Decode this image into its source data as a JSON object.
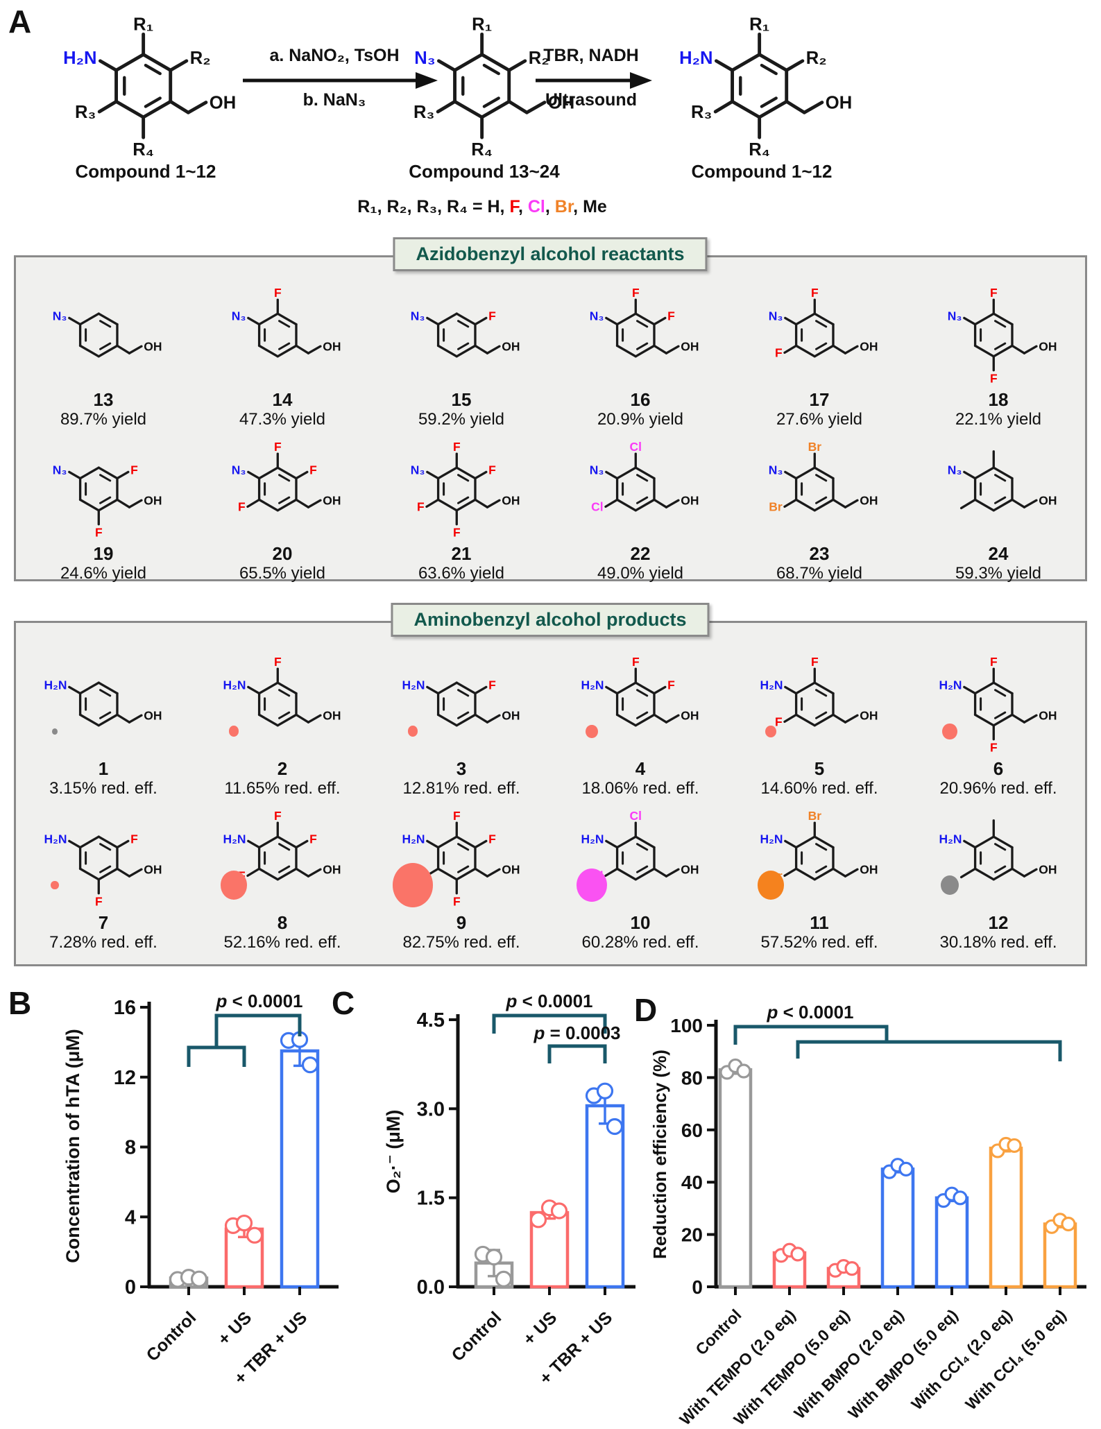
{
  "colors": {
    "F": "#f40000",
    "Cl": "#fa3bf7",
    "Br": "#f08228",
    "amine": "#1616f0",
    "bond": "#1a1a1a",
    "bracket": "#19586a",
    "box_bg": "#f0f0ee",
    "box_border": "#8a8a8a",
    "tab_bg": "#e9efe4",
    "tab_text": "#12584c",
    "gray_bar": "#999999",
    "salmon_bar": "#fb6b6b",
    "blue_bar": "#3d76f0",
    "orange_bar": "#f9a140"
  },
  "panel_a": {
    "label": "A",
    "captions": [
      "Compound 1~12",
      "Compound 13~24",
      "Compound 1~12"
    ],
    "arrow1": {
      "line1": "a. NaNO₂, TsOH",
      "line2": "b. NaN₃"
    },
    "arrow2": {
      "line1": "TBR, NADH",
      "line2": "Ultrasound"
    },
    "generic": {
      "amine_left": "H₂N",
      "amine_mid": "N₃",
      "amine_right": "H₂N",
      "r_labels": [
        "R₁",
        "R₂",
        "R₃",
        "R₄"
      ],
      "oh_label": "OH"
    },
    "legend_parts": [
      {
        "text": "R₁, R₂, R₃, R₄ = H, ",
        "color": "#111111"
      },
      {
        "text": "F",
        "color": "#f40000"
      },
      {
        "text": ", ",
        "color": "#111111"
      },
      {
        "text": "Cl",
        "color": "#fa3bf7"
      },
      {
        "text": ", ",
        "color": "#111111"
      },
      {
        "text": "Br",
        "color": "#f08228"
      },
      {
        "text": ", Me",
        "color": "#111111"
      }
    ]
  },
  "reactants": {
    "title": "Azidobenzyl alcohol reactants",
    "amine": "N₃",
    "compounds": [
      {
        "num": "13",
        "value": "89.7% yield",
        "subs": {}
      },
      {
        "num": "14",
        "value": "47.3% yield",
        "subs": {
          "top": "F"
        }
      },
      {
        "num": "15",
        "value": "59.2% yield",
        "subs": {
          "tr": "F"
        }
      },
      {
        "num": "16",
        "value": "20.9% yield",
        "subs": {
          "top": "F",
          "tr": "F"
        }
      },
      {
        "num": "17",
        "value": "27.6% yield",
        "subs": {
          "top": "F",
          "bl": "F"
        }
      },
      {
        "num": "18",
        "value": "22.1% yield",
        "subs": {
          "top": "F",
          "bot": "F"
        }
      },
      {
        "num": "19",
        "value": "24.6% yield",
        "subs": {
          "tr": "F",
          "bot": "F"
        }
      },
      {
        "num": "20",
        "value": "65.5% yield",
        "subs": {
          "top": "F",
          "tr": "F",
          "bl": "F"
        }
      },
      {
        "num": "21",
        "value": "63.6% yield",
        "subs": {
          "top": "F",
          "tr": "F",
          "bl": "F",
          "bot": "F"
        }
      },
      {
        "num": "22",
        "value": "49.0% yield",
        "subs": {
          "top": "Cl",
          "bl": "Cl"
        }
      },
      {
        "num": "23",
        "value": "68.7% yield",
        "subs": {
          "top": "Br",
          "bl": "Br"
        }
      },
      {
        "num": "24",
        "value": "59.3% yield",
        "subs": {
          "top": "Me",
          "bl": "Me"
        }
      }
    ]
  },
  "products": {
    "title": "Aminobenzyl alcohol products",
    "amine": "H₂N",
    "compounds": [
      {
        "num": "1",
        "value": "3.15% red. eff.",
        "subs": {},
        "dot": {
          "color": "#8a8a8a",
          "size": 9
        }
      },
      {
        "num": "2",
        "value": "11.65% red. eff.",
        "subs": {
          "top": "F"
        },
        "dot": {
          "color": "#fa7468",
          "size": 16
        }
      },
      {
        "num": "3",
        "value": "12.81% red. eff.",
        "subs": {
          "tr": "F"
        },
        "dot": {
          "color": "#fa7468",
          "size": 16
        }
      },
      {
        "num": "4",
        "value": "18.06% red. eff.",
        "subs": {
          "top": "F",
          "tr": "F"
        },
        "dot": {
          "color": "#fa7468",
          "size": 19
        }
      },
      {
        "num": "5",
        "value": "14.60% red. eff.",
        "subs": {
          "top": "F",
          "bl": "F"
        },
        "dot": {
          "color": "#fa7468",
          "size": 17
        }
      },
      {
        "num": "6",
        "value": "20.96% red. eff.",
        "subs": {
          "top": "F",
          "bot": "F"
        },
        "dot": {
          "color": "#fa7468",
          "size": 23
        }
      },
      {
        "num": "7",
        "value": "7.28% red. eff.",
        "subs": {
          "tr": "F",
          "bot": "F"
        },
        "dot": {
          "color": "#fa7468",
          "size": 12
        }
      },
      {
        "num": "8",
        "value": "52.16% red. eff.",
        "subs": {
          "top": "F",
          "tr": "F",
          "bl": "F"
        },
        "dot": {
          "color": "#fa7468",
          "size": 42
        }
      },
      {
        "num": "9",
        "value": "82.75% red. eff.",
        "subs": {
          "top": "F",
          "tr": "F",
          "bl": "F",
          "bot": "F"
        },
        "dot": {
          "color": "#fa7468",
          "size": 64
        }
      },
      {
        "num": "10",
        "value": "60.28% red. eff.",
        "subs": {
          "top": "Cl",
          "bl": "Cl"
        },
        "dot": {
          "color": "#fa52f2",
          "size": 48
        }
      },
      {
        "num": "11",
        "value": "57.52% red. eff.",
        "subs": {
          "top": "Br",
          "bl": "Br"
        },
        "dot": {
          "color": "#f5821e",
          "size": 42
        }
      },
      {
        "num": "12",
        "value": "30.18% red. eff.",
        "subs": {
          "top": "Me",
          "bl": "Me"
        },
        "dot": {
          "color": "#8a8a8a",
          "size": 28
        }
      }
    ]
  },
  "chart_data": [
    {
      "type": "bar",
      "panel_label": "B",
      "ylabel": "Concentration of hTA (μM)",
      "xlabel": "",
      "tick_values": [
        0,
        4,
        8,
        12,
        16
      ],
      "tick_labels": [
        "0",
        "4",
        "8",
        "12",
        "16"
      ],
      "ylim": [
        0,
        16
      ],
      "grid": false,
      "categories": [
        "Control",
        "+ US",
        "+ TBR + US"
      ],
      "series": [
        {
          "name": "Control",
          "mean": 0.5,
          "sd": 0.15,
          "points": [
            0.42,
            0.55,
            0.45
          ],
          "color": "#999999"
        },
        {
          "name": "+ US",
          "mean": 3.3,
          "sd": 0.45,
          "points": [
            3.5,
            3.65,
            2.95
          ],
          "color": "#fb6b6b"
        },
        {
          "name": "+ TBR + US",
          "mean": 13.5,
          "sd": 0.85,
          "points": [
            14.1,
            14.15,
            12.7
          ],
          "color": "#3d76f0"
        }
      ],
      "sig": [
        {
          "label": "p < 0.0001"
        }
      ]
    },
    {
      "type": "bar",
      "panel_label": "C",
      "ylabel": "O₂·⁻ (μM)",
      "xlabel": "",
      "tick_values": [
        0,
        1.5,
        3.0,
        4.5
      ],
      "tick_labels": [
        "0.0",
        "1.5",
        "3.0",
        "4.5"
      ],
      "ylim": [
        0,
        4.5
      ],
      "grid": false,
      "categories": [
        "Control",
        "+ US",
        "+ TBR + US"
      ],
      "series": [
        {
          "name": "Control",
          "mean": 0.4,
          "sd": 0.22,
          "points": [
            0.55,
            0.5,
            0.13
          ],
          "color": "#999999"
        },
        {
          "name": "+ US",
          "mean": 1.25,
          "sd": 0.1,
          "points": [
            1.13,
            1.33,
            1.28
          ],
          "color": "#fb6b6b"
        },
        {
          "name": "+ TBR + US",
          "mean": 3.05,
          "sd": 0.3,
          "points": [
            3.22,
            3.3,
            2.7
          ],
          "color": "#3d76f0"
        }
      ],
      "sig": [
        {
          "label": "p < 0.0001"
        },
        {
          "label": "p = 0.0003"
        }
      ]
    },
    {
      "type": "bar",
      "panel_label": "D",
      "ylabel": "Reduction efficiency (%)",
      "xlabel": "",
      "tick_values": [
        0,
        20,
        40,
        60,
        80,
        100
      ],
      "tick_labels": [
        "0",
        "20",
        "40",
        "60",
        "80",
        "100"
      ],
      "ylim": [
        0,
        100
      ],
      "grid": false,
      "categories": [
        "Control",
        "With TEMPO (2.0 eq)",
        "With TEMPO (5.0 eq)",
        "With BMPO (2.0 eq)",
        "With BMPO (5.0 eq)",
        "With CCl₄ (2.0 eq)",
        "With CCl₄ (5.0 eq)"
      ],
      "series": [
        {
          "name": "Control",
          "mean": 83,
          "sd": 1.5,
          "points": [
            82,
            84.5,
            82.5
          ],
          "color": "#999999"
        },
        {
          "name": "With TEMPO (2.0 eq)",
          "mean": 13,
          "sd": 1.0,
          "points": [
            12,
            14,
            12.5
          ],
          "color": "#fb6b6b"
        },
        {
          "name": "With TEMPO (5.0 eq)",
          "mean": 7,
          "sd": 0.8,
          "points": [
            6.3,
            7.8,
            7
          ],
          "color": "#fb6b6b"
        },
        {
          "name": "With BMPO (2.0 eq)",
          "mean": 45,
          "sd": 1.2,
          "points": [
            44,
            46.5,
            45
          ],
          "color": "#3d76f0"
        },
        {
          "name": "With BMPO (5.0 eq)",
          "mean": 34,
          "sd": 1.2,
          "points": [
            33,
            35.5,
            34
          ],
          "color": "#3d76f0"
        },
        {
          "name": "With CCl₄ (2.0 eq)",
          "mean": 53,
          "sd": 1.2,
          "points": [
            52,
            54.5,
            54
          ],
          "color": "#f9a140"
        },
        {
          "name": "With CCl₄ (5.0 eq)",
          "mean": 24,
          "sd": 1.2,
          "points": [
            23,
            25.5,
            24
          ],
          "color": "#f9a140"
        }
      ],
      "sig": [
        {
          "label": "p < 0.0001"
        }
      ]
    }
  ]
}
